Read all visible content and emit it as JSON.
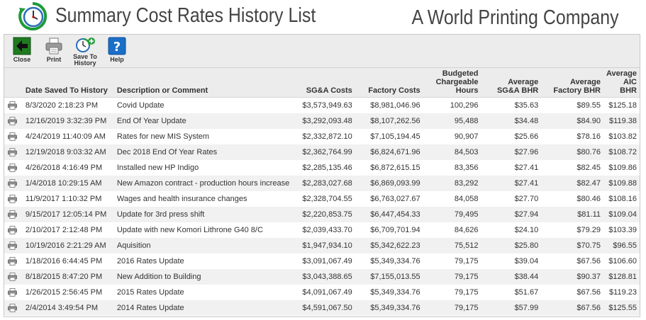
{
  "header": {
    "title": "Summary Cost Rates History List",
    "company": "A World Printing Company"
  },
  "toolbar": {
    "close_label": "Close",
    "print_label": "Print",
    "save_label_1": "Save To",
    "save_label_2": "History",
    "help_label": "Help"
  },
  "table": {
    "headers": {
      "date": "Date Saved To History",
      "desc": "Description or Comment",
      "sga": "SG&A Costs",
      "factory": "Factory Costs",
      "bch_1": "Budgeted",
      "bch_2": "Chargeable",
      "bch_3": "Hours",
      "asga_1": "Average",
      "asga_2": "SG&A BHR",
      "afac_1": "Average",
      "afac_2": "Factory BHR",
      "aaic_1": "Average",
      "aaic_2": "AIC BHR"
    },
    "rows": [
      {
        "date": "8/3/2020 2:18:23 PM",
        "desc": "Covid Update",
        "sga": "$3,573,949.63",
        "factory": "$8,981,046.96",
        "hours": "100,296",
        "asga": "$35.63",
        "afac": "$89.55",
        "aaic": "$125.18"
      },
      {
        "date": "12/16/2019 3:32:39 PM",
        "desc": "End Of Year Update",
        "sga": "$3,292,093.48",
        "factory": "$8,107,262.56",
        "hours": "95,488",
        "asga": "$34.48",
        "afac": "$84.90",
        "aaic": "$119.38"
      },
      {
        "date": "4/24/2019 11:40:09 AM",
        "desc": "Rates for new MIS System",
        "sga": "$2,332,872.10",
        "factory": "$7,105,194.45",
        "hours": "90,907",
        "asga": "$25.66",
        "afac": "$78.16",
        "aaic": "$103.82"
      },
      {
        "date": "12/19/2018 9:03:32 AM",
        "desc": "Dec 2018 End Of Year Rates",
        "sga": "$2,362,764.99",
        "factory": "$6,824,671.96",
        "hours": "84,503",
        "asga": "$27.96",
        "afac": "$80.76",
        "aaic": "$108.72"
      },
      {
        "date": "4/26/2018 4:16:49 PM",
        "desc": "Installed new HP Indigo",
        "sga": "$2,285,135.46",
        "factory": "$6,872,615.15",
        "hours": "83,356",
        "asga": "$27.41",
        "afac": "$82.45",
        "aaic": "$109.86"
      },
      {
        "date": "1/4/2018 10:29:15 AM",
        "desc": "New Amazon contract - production hours increase",
        "sga": "$2,283,027.68",
        "factory": "$6,869,093.99",
        "hours": "83,292",
        "asga": "$27.41",
        "afac": "$82.47",
        "aaic": "$109.88"
      },
      {
        "date": "11/9/2017 1:10:32 PM",
        "desc": "Wages and health insurance changes",
        "sga": "$2,328,704.55",
        "factory": "$6,763,027.67",
        "hours": "84,058",
        "asga": "$27.70",
        "afac": "$80.46",
        "aaic": "$108.16"
      },
      {
        "date": "9/15/2017 12:05:14 PM",
        "desc": "Update for 3rd press shift",
        "sga": "$2,220,853.75",
        "factory": "$6,447,454.33",
        "hours": "79,495",
        "asga": "$27.94",
        "afac": "$81.11",
        "aaic": "$109.04"
      },
      {
        "date": "2/10/2017 2:12:48 PM",
        "desc": "Update with new Komori Lithrone G40 8/C",
        "sga": "$2,039,433.70",
        "factory": "$6,709,701.94",
        "hours": "84,626",
        "asga": "$24.10",
        "afac": "$79.29",
        "aaic": "$103.39"
      },
      {
        "date": "10/19/2016 2:21:29 AM",
        "desc": "Aquisition",
        "sga": "$1,947,934.10",
        "factory": "$5,342,622.23",
        "hours": "75,512",
        "asga": "$25.80",
        "afac": "$70.75",
        "aaic": "$96.55"
      },
      {
        "date": "1/18/2016 6:44:45 PM",
        "desc": "2016 Rates Update",
        "sga": "$3,091,067.49",
        "factory": "$5,349,334.76",
        "hours": "79,175",
        "asga": "$39.04",
        "afac": "$67.56",
        "aaic": "$106.60"
      },
      {
        "date": "8/18/2015 8:47:20 PM",
        "desc": "New Addition to Building",
        "sga": "$3,043,388.65",
        "factory": "$7,155,013.55",
        "hours": "79,175",
        "asga": "$38.44",
        "afac": "$90.37",
        "aaic": "$128.81"
      },
      {
        "date": "1/26/2015 2:56:45 PM",
        "desc": "2015 Rates Update",
        "sga": "$4,091,067.49",
        "factory": "$5,349,334.76",
        "hours": "79,175",
        "asga": "$51.67",
        "afac": "$67.56",
        "aaic": "$119.23"
      },
      {
        "date": "2/4/2014 3:49:54 PM",
        "desc": "2014 Rates Update",
        "sga": "$4,591,067.50",
        "factory": "$5,349,334.76",
        "hours": "79,175",
        "asga": "$57.99",
        "afac": "$67.56",
        "aaic": "$125.55"
      }
    ]
  },
  "icons": {
    "logo": "clock-history-icon",
    "close": "arrow-left-icon",
    "print": "printer-icon",
    "save": "clock-plus-icon",
    "help": "question-mark-icon",
    "row_print": "printer-icon"
  },
  "colors": {
    "toolbar_bg": "#ececec",
    "stripe": "#f1f1f1",
    "close_green": "#1f7a1f",
    "help_blue": "#1a6fc7"
  }
}
